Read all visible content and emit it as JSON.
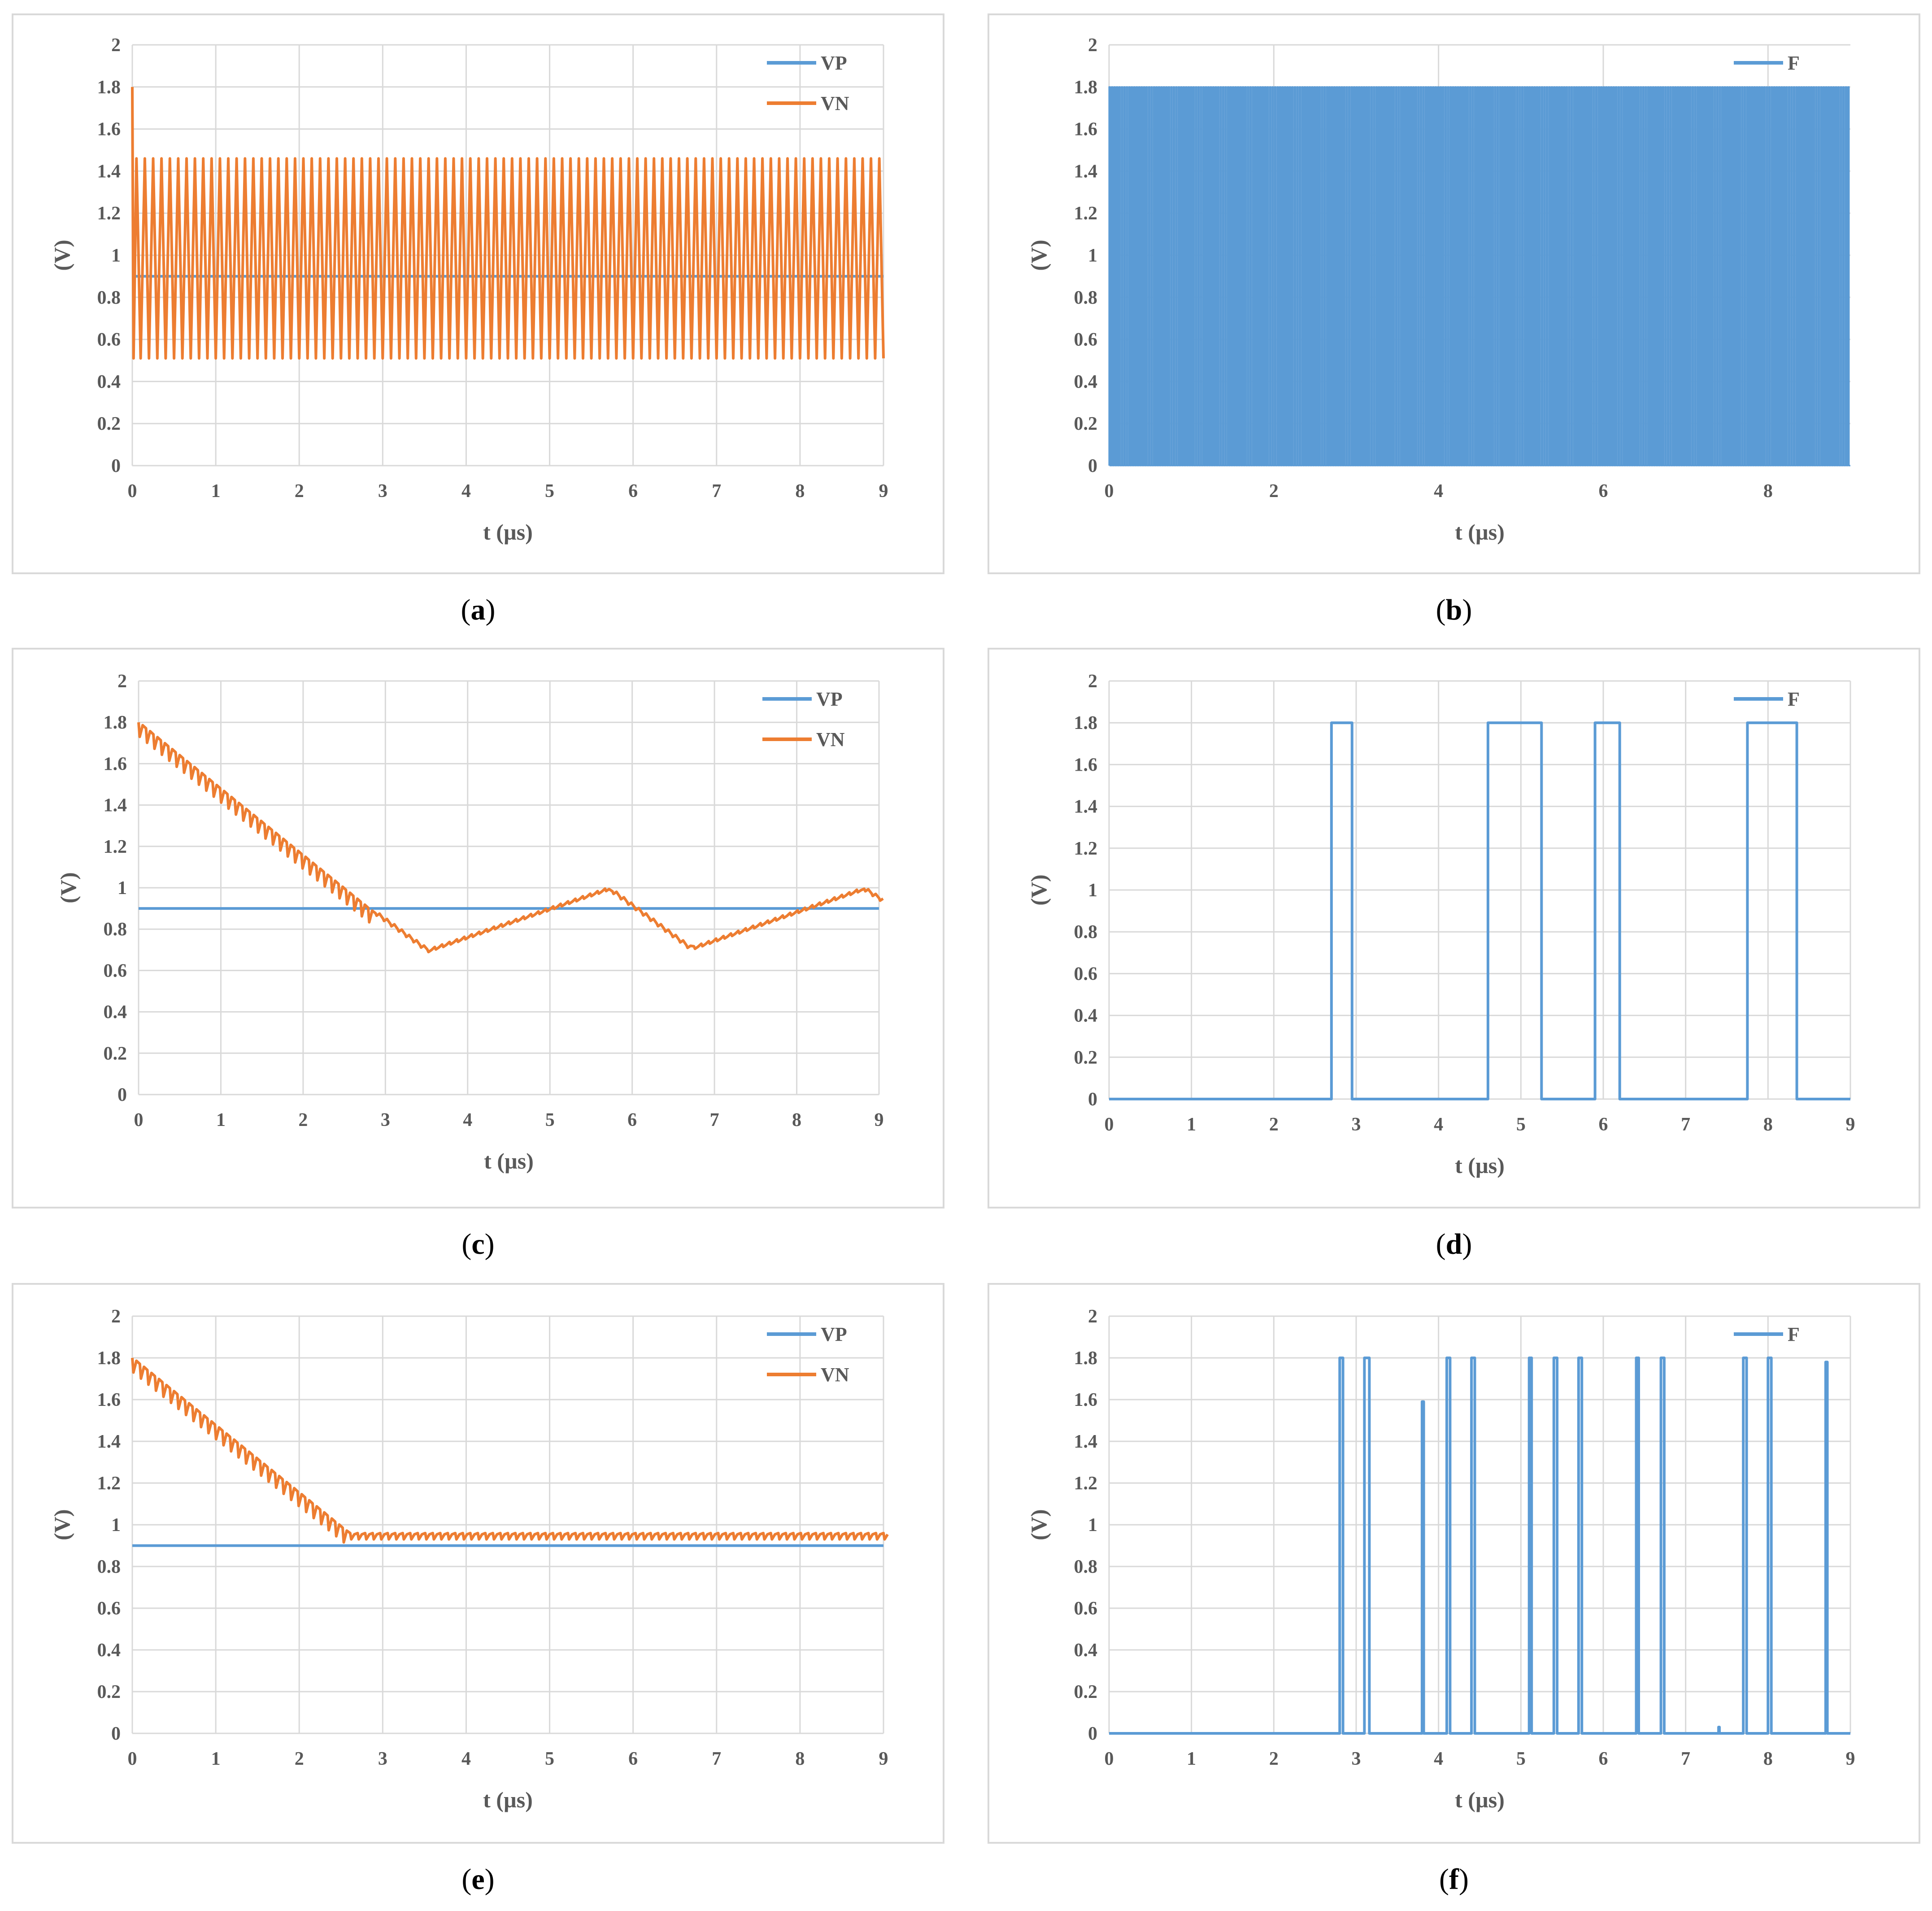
{
  "panels": [
    {
      "label": "a"
    },
    {
      "label": "b"
    },
    {
      "label": "c"
    },
    {
      "label": "d"
    },
    {
      "label": "e"
    },
    {
      "label": "f"
    }
  ],
  "colors": {
    "vp": "#5b9bd5",
    "vn": "#ed7d31",
    "f": "#5b9bd5",
    "grid": "#d9d9d9",
    "text": "#595959"
  },
  "chart_data": [
    {
      "type": "line",
      "panel": "a",
      "xlabel": "t (µs)",
      "ylabel": "(V)",
      "xlim": [
        0,
        9
      ],
      "ylim": [
        0,
        2
      ],
      "xticks": [
        "0",
        "1",
        "2",
        "3",
        "4",
        "5",
        "6",
        "7",
        "8",
        "9"
      ],
      "yticks": [
        "0",
        "0.2",
        "0.4",
        "0.6",
        "0.8",
        "1",
        "1.2",
        "1.4",
        "1.6",
        "1.8",
        "2"
      ],
      "grid": true,
      "legend": "top-right",
      "series": [
        {
          "name": "VP",
          "kind": "constant",
          "value": 0.9
        },
        {
          "name": "VN",
          "kind": "triangle_oscillation",
          "start": 1.8,
          "min": 0.51,
          "max": 1.46,
          "cycles": 90
        }
      ]
    },
    {
      "type": "line",
      "panel": "b",
      "xlabel": "t (µs)",
      "ylabel": "(V)",
      "xlim": [
        0,
        9
      ],
      "ylim": [
        0,
        2
      ],
      "xticks": [
        "0",
        "2",
        "4",
        "6",
        "8"
      ],
      "yticks": [
        "0",
        "0.2",
        "0.4",
        "0.6",
        "0.8",
        "1",
        "1.2",
        "1.4",
        "1.6",
        "1.8",
        "2"
      ],
      "grid": true,
      "legend": "top-right",
      "series": [
        {
          "name": "F",
          "kind": "dense_pulses",
          "low": 0,
          "high": 1.8,
          "pulses": 300
        }
      ]
    },
    {
      "type": "line",
      "panel": "c",
      "xlabel": "t (µs)",
      "ylabel": "(V)",
      "xlim": [
        0,
        9
      ],
      "ylim": [
        0,
        2
      ],
      "xticks": [
        "0",
        "1",
        "2",
        "3",
        "4",
        "5",
        "6",
        "7",
        "8",
        "9"
      ],
      "yticks": [
        "0",
        "0.2",
        "0.4",
        "0.6",
        "0.8",
        "1",
        "1.2",
        "1.4",
        "1.6",
        "1.8",
        "2"
      ],
      "grid": true,
      "legend": "top-right",
      "series": [
        {
          "name": "VP",
          "kind": "constant",
          "value": 0.9
        },
        {
          "name": "VN",
          "kind": "ripple_path",
          "points": [
            [
              0,
              1.8
            ],
            [
              2.8,
              0.9
            ],
            [
              3.5,
              0.7
            ],
            [
              5.7,
              1.0
            ],
            [
              6.7,
              0.71
            ],
            [
              8.8,
              1.0
            ],
            [
              9,
              0.95
            ]
          ],
          "ripple": 0.07,
          "ripple_until": 2.8
        }
      ]
    },
    {
      "type": "line",
      "panel": "d",
      "xlabel": "t (µs)",
      "ylabel": "(V)",
      "xlim": [
        0,
        9
      ],
      "ylim": [
        0,
        2
      ],
      "xticks": [
        "0",
        "1",
        "2",
        "3",
        "4",
        "5",
        "6",
        "7",
        "8",
        "9"
      ],
      "yticks": [
        "0",
        "0.2",
        "0.4",
        "0.6",
        "0.8",
        "1",
        "1.2",
        "1.4",
        "1.6",
        "1.8",
        "2"
      ],
      "grid": true,
      "legend": "top-right",
      "series": [
        {
          "name": "F",
          "kind": "pulses",
          "low": 0,
          "pulses": [
            [
              2.7,
              2.95,
              1.8
            ],
            [
              4.6,
              5.25,
              1.8
            ],
            [
              5.9,
              6.2,
              1.8
            ],
            [
              7.75,
              8.35,
              1.8
            ]
          ]
        }
      ]
    },
    {
      "type": "line",
      "panel": "e",
      "xlabel": "t (µs)",
      "ylabel": "(V)",
      "xlim": [
        0,
        9
      ],
      "ylim": [
        0,
        2
      ],
      "xticks": [
        "0",
        "1",
        "2",
        "3",
        "4",
        "5",
        "6",
        "7",
        "8",
        "9"
      ],
      "yticks": [
        "0",
        "0.2",
        "0.4",
        "0.6",
        "0.8",
        "1",
        "1.2",
        "1.4",
        "1.6",
        "1.8",
        "2"
      ],
      "grid": true,
      "legend": "top-right",
      "series": [
        {
          "name": "VP",
          "kind": "constant",
          "value": 0.9
        },
        {
          "name": "VN",
          "kind": "ripple_path",
          "points": [
            [
              0,
              1.8
            ],
            [
              2.6,
              0.96
            ],
            [
              9,
              0.96
            ]
          ],
          "ripple": 0.07,
          "ripple_until": 2.6,
          "steady_ripple": 0.03
        }
      ]
    },
    {
      "type": "line",
      "panel": "f",
      "xlabel": "t (µs)",
      "ylabel": "(V)",
      "xlim": [
        0,
        9
      ],
      "ylim": [
        0,
        2
      ],
      "xticks": [
        "0",
        "1",
        "2",
        "3",
        "4",
        "5",
        "6",
        "7",
        "8",
        "9"
      ],
      "yticks": [
        "0",
        "0.2",
        "0.4",
        "0.6",
        "0.8",
        "1",
        "1.2",
        "1.4",
        "1.6",
        "1.8",
        "2"
      ],
      "grid": true,
      "legend": "top-right",
      "series": [
        {
          "name": "F",
          "kind": "pulses",
          "low": 0,
          "pulses": [
            [
              2.8,
              2.84,
              1.8
            ],
            [
              3.1,
              3.16,
              1.8
            ],
            [
              3.8,
              3.82,
              1.59
            ],
            [
              4.1,
              4.14,
              1.8
            ],
            [
              4.4,
              4.44,
              1.8
            ],
            [
              5.1,
              5.13,
              1.8
            ],
            [
              5.4,
              5.44,
              1.8
            ],
            [
              5.7,
              5.74,
              1.8
            ],
            [
              6.4,
              6.43,
              1.8
            ],
            [
              6.7,
              6.74,
              1.8
            ],
            [
              7.4,
              7.41,
              0.03
            ],
            [
              7.7,
              7.74,
              1.8
            ],
            [
              8.0,
              8.04,
              1.8
            ],
            [
              8.7,
              8.72,
              1.78
            ]
          ]
        }
      ]
    }
  ]
}
